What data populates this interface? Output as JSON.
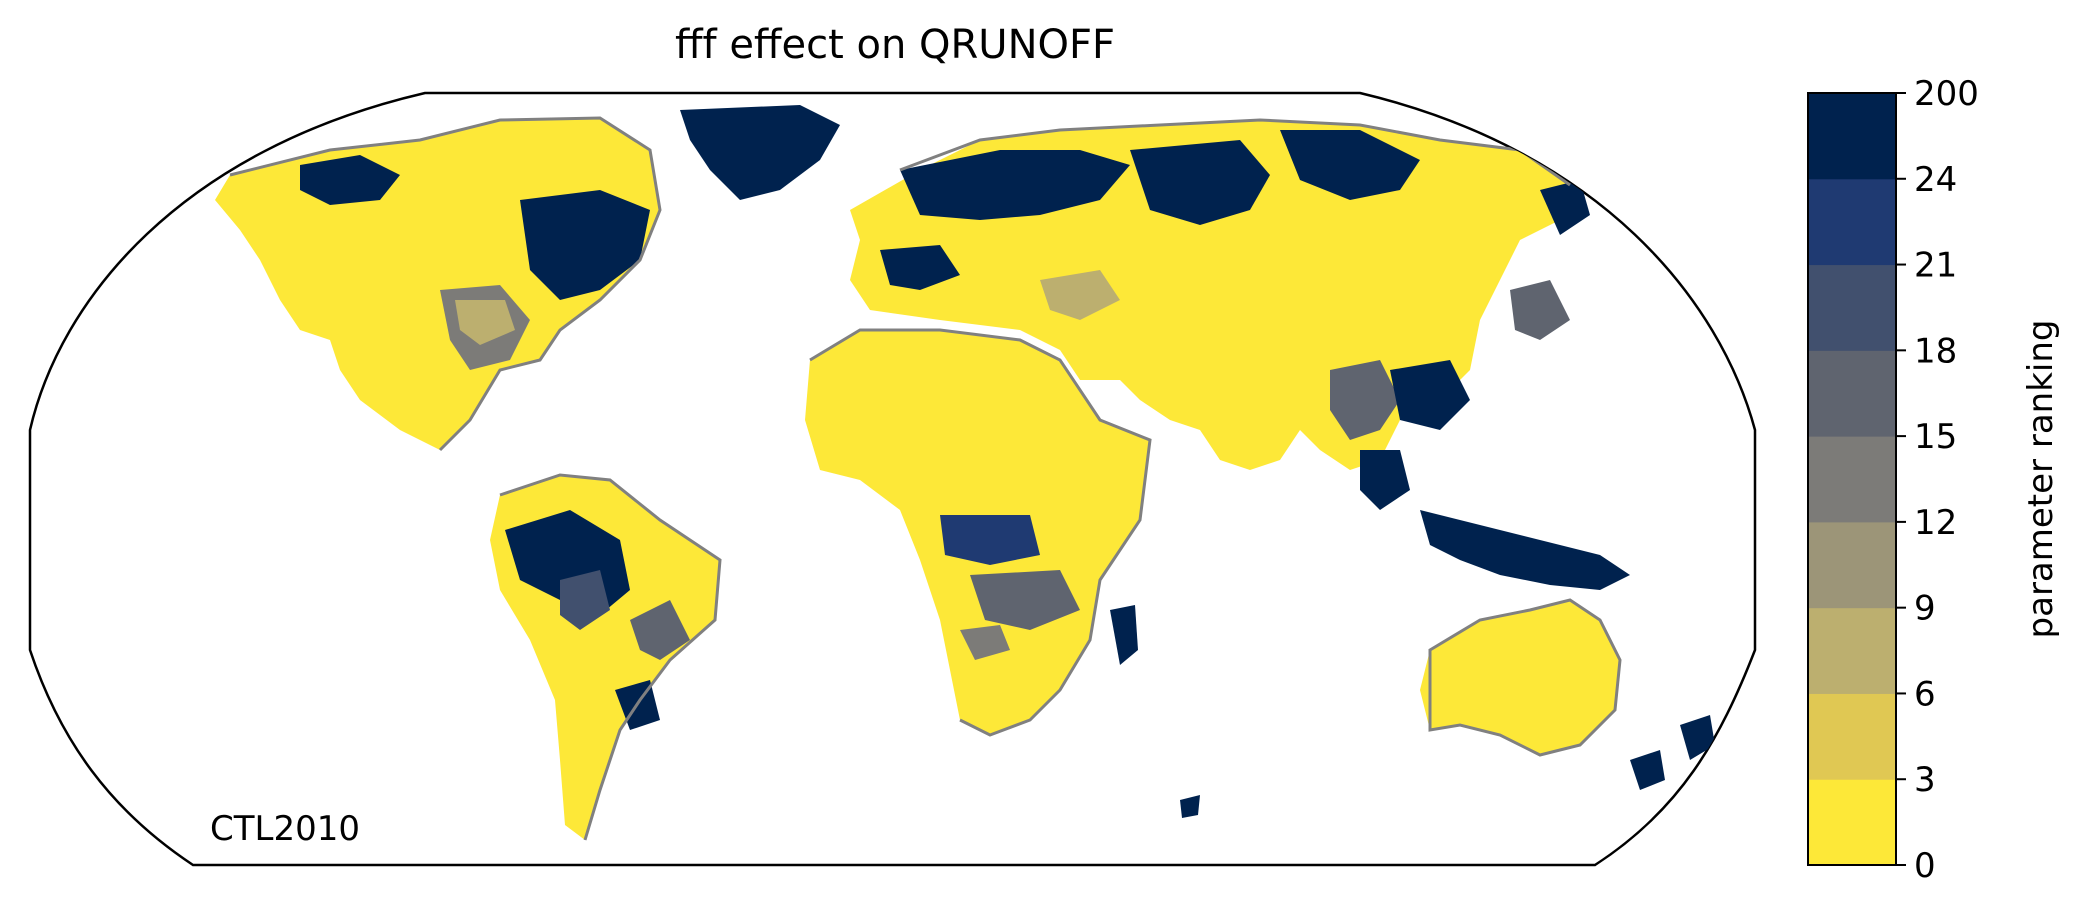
{
  "title": "fff effect on QRUNOFF",
  "case_label": "CTL2010",
  "colorbar": {
    "label": "parameter ranking",
    "ticks": [
      "0",
      "3",
      "6",
      "9",
      "12",
      "15",
      "18",
      "21",
      "24",
      "200"
    ],
    "bins": [
      {
        "from": "0",
        "to": "3",
        "color": "#fde838"
      },
      {
        "from": "3",
        "to": "6",
        "color": "#e0c853"
      },
      {
        "from": "6",
        "to": "9",
        "color": "#bcaf6f"
      },
      {
        "from": "9",
        "to": "12",
        "color": "#9c9578"
      },
      {
        "from": "12",
        "to": "15",
        "color": "#7c7b78"
      },
      {
        "from": "15",
        "to": "18",
        "color": "#5f646f"
      },
      {
        "from": "18",
        "to": "21",
        "color": "#41506e"
      },
      {
        "from": "21",
        "to": "24",
        "color": "#1f3a72"
      },
      {
        "from": "24",
        "to": "200",
        "color": "#00224e"
      }
    ]
  },
  "map": {
    "projection": "Robinson",
    "coastline_color": "#808080"
  }
}
